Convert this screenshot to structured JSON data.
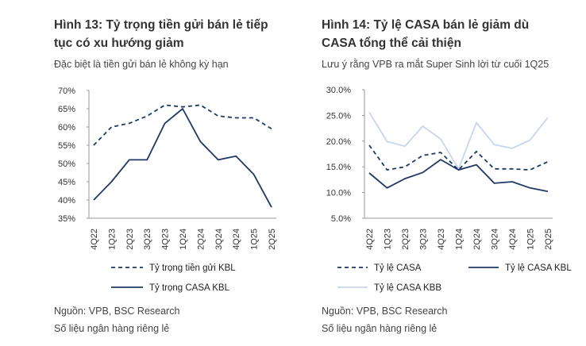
{
  "left": {
    "title_line1": "Hình 13: Tỷ trọng tiền gửi bán lẻ tiếp",
    "title_line2": "tục có xu hướng giảm",
    "subtitle": "Đặc biệt là tiền gửi bán lẻ không kỳ hạn",
    "source": "Nguồn: VPB, BSC Research",
    "note": "Số liệu ngân hàng riêng lẻ"
  },
  "right": {
    "title_line1": "Hình 14: Tỷ lệ CASA bán lẻ giảm dù",
    "title_line2": "CASA tổng thể cải thiện",
    "subtitle": "Lưu ý rằng VPB ra mắt Super Sinh lời từ cuối 1Q25",
    "source": "Nguồn: VPB, BSC Research",
    "note": "Số liệu ngân hàng riêng lẻ"
  },
  "colors": {
    "navy": "#1f3864",
    "light": "#c9d5ec",
    "axis": "#999999"
  },
  "chart_data": [
    {
      "type": "line",
      "title": "Hình 13: Tỷ trọng tiền gửi bán lẻ tiếp tục có xu hướng giảm",
      "categories": [
        "4Q22",
        "1Q23",
        "2Q23",
        "3Q23",
        "4Q23",
        "1Q24",
        "2Q24",
        "3Q24",
        "4Q24",
        "1Q25",
        "2Q25"
      ],
      "ylim": [
        35,
        70
      ],
      "yticks": [
        35,
        40,
        45,
        50,
        55,
        60,
        65,
        70
      ],
      "ytick_labels": [
        "35%",
        "40%",
        "45%",
        "50%",
        "55%",
        "60%",
        "65%",
        "70%"
      ],
      "series": [
        {
          "name": "Tỷ trọng tiền gửi KBL",
          "style": "dashed",
          "color": "#1f3864",
          "values": [
            55,
            60,
            61,
            63,
            66,
            65.5,
            66,
            63,
            62.5,
            62.5,
            59.5
          ]
        },
        {
          "name": "Tỷ trọng CASA KBL",
          "style": "solid",
          "color": "#1f3864",
          "values": [
            40,
            45,
            51,
            51,
            61,
            65,
            56,
            51,
            52,
            47,
            38
          ]
        }
      ],
      "legend_position": "bottom"
    },
    {
      "type": "line",
      "title": "Hình 14: Tỷ lệ CASA bán lẻ giảm dù CASA tổng thể cải thiện",
      "categories": [
        "4Q22",
        "1Q23",
        "2Q23",
        "3Q23",
        "4Q23",
        "1Q24",
        "2Q24",
        "3Q24",
        "4Q24",
        "1Q25",
        "2Q25"
      ],
      "ylim": [
        5,
        30
      ],
      "yticks": [
        5,
        10,
        15,
        20,
        25,
        30
      ],
      "ytick_labels": [
        "5.0%",
        "10.0%",
        "15.0%",
        "20.0%",
        "25.0%",
        "30.0%"
      ],
      "series": [
        {
          "name": "Tỷ lệ CASA",
          "style": "dashed",
          "color": "#1f3864",
          "values": [
            19.2,
            14.4,
            15.0,
            17.2,
            17.8,
            14.4,
            18.0,
            14.6,
            14.6,
            14.4,
            16.0
          ]
        },
        {
          "name": "Tỷ lệ CASA KBL",
          "style": "solid",
          "color": "#1f3864",
          "values": [
            13.8,
            10.9,
            12.7,
            13.9,
            16.4,
            14.4,
            15.4,
            11.8,
            12.1,
            10.9,
            10.2
          ]
        },
        {
          "name": "Tỷ lệ CASA KBB",
          "style": "solid",
          "color": "#c9d5ec",
          "values": [
            25.6,
            19.9,
            19.0,
            22.9,
            20.4,
            14.6,
            23.6,
            19.3,
            18.6,
            20.2,
            24.6
          ]
        }
      ],
      "legend_position": "bottom"
    }
  ]
}
